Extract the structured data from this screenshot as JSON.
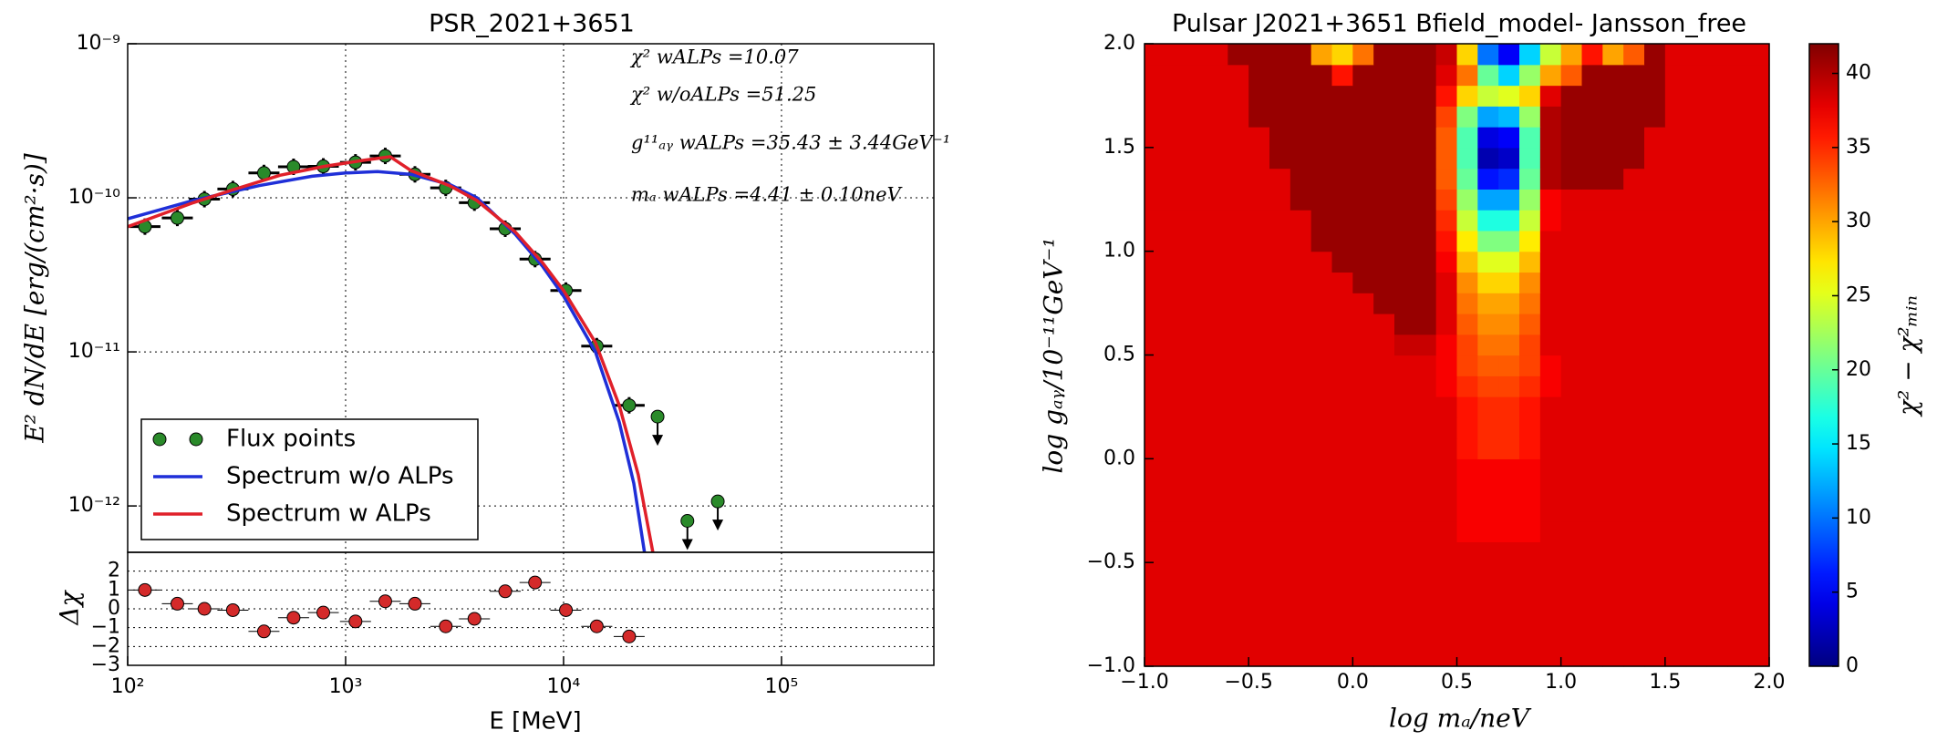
{
  "chart_data": [
    {
      "type": "line",
      "title": "PSR_2021+3651",
      "xlabel": "E [MeV]",
      "ylabel": "E² dN/dE [erg/(cm²·s)]",
      "logx": true,
      "logy": true,
      "grid": true,
      "legend": "lower left",
      "xlim": [
        100,
        500000
      ],
      "ylim": [
        5e-13,
        1e-09
      ],
      "xticks": [
        100,
        1000,
        10000,
        100000
      ],
      "yticks": [
        {
          "value": 1e-09,
          "label": "10⁻⁹"
        },
        {
          "value": 1e-10,
          "label": "10⁻¹⁰"
        },
        {
          "value": 1e-11,
          "label": "10⁻¹¹"
        },
        {
          "value": 1e-12,
          "label": "10⁻¹²"
        }
      ],
      "annotations": [
        "χ² wALPs =10.07",
        "χ² w/oALPs =51.25",
        "g¹¹ₐᵧ wALPs =35.43 ± 3.44GeV⁻¹",
        "mₐ wALPs =4.41 ± 0.10neV"
      ],
      "series": [
        {
          "name": "Flux points",
          "type": "markers",
          "color": "#2a8a2a",
          "x": [
            120,
            169,
            225,
            304,
            422,
            577,
            790,
            1110,
            1520,
            2080,
            2880,
            3900,
            5400,
            7400,
            10250,
            14200,
            20000
          ],
          "values": [
            6.5e-11,
            7.4e-11,
            9.8e-11,
            1.14e-10,
            1.45e-10,
            1.59e-10,
            1.6e-10,
            1.7e-10,
            1.87e-10,
            1.42e-10,
            1.16e-10,
            9.3e-11,
            6.3e-11,
            4e-11,
            2.5e-11,
            1.09e-11,
            4.5e-12
          ]
        },
        {
          "name": "Spectrum w/o ALPs",
          "type": "line",
          "color": "#1f2fd8",
          "x": [
            100,
            200,
            400,
            700,
            1000,
            1400,
            2000,
            3000,
            4000,
            6000,
            8000,
            10000,
            14000,
            18000,
            21000,
            23500
          ],
          "values": [
            7.3e-11,
            9.6e-11,
            1.2e-10,
            1.38e-10,
            1.45e-10,
            1.48e-10,
            1.42e-10,
            1.22e-10,
            1e-10,
            5.8e-11,
            3.6e-11,
            2.3e-11,
            1e-11,
            3.5e-12,
            1.4e-12,
            5e-13
          ]
        },
        {
          "name": "Spectrum w ALPs",
          "type": "line",
          "color": "#e0202a",
          "x": [
            100,
            200,
            300,
            500,
            800,
            1200,
            1600,
            2000,
            3000,
            4000,
            6000,
            8000,
            10000,
            14000,
            18000,
            22000,
            25700
          ],
          "values": [
            6.5e-11,
            9.3e-11,
            1.12e-10,
            1.4e-10,
            1.6e-10,
            1.75e-10,
            1.85e-10,
            1.5e-10,
            1.2e-10,
            9.6e-11,
            6e-11,
            3.8e-11,
            2.5e-11,
            1.15e-11,
            4.5e-12,
            1.6e-12,
            5e-13
          ]
        }
      ],
      "upper_limits": {
        "color": "#2a8a2a",
        "x": [
          27000,
          37000,
          51000
        ],
        "values": [
          3.8e-12,
          8e-13,
          1.07e-12
        ]
      }
    },
    {
      "type": "scatter",
      "ylabel": "Δχ",
      "logx": true,
      "grid": true,
      "color": "#d42a2a",
      "xlim": [
        100,
        500000
      ],
      "ylim": [
        -3,
        3
      ],
      "xticks": [
        {
          "value": 100,
          "label": "10²"
        },
        {
          "value": 1000,
          "label": "10³"
        },
        {
          "value": 10000,
          "label": "10⁴"
        },
        {
          "value": 100000,
          "label": "10⁵"
        }
      ],
      "yticks": [
        {
          "value": -3,
          "label": "−3"
        },
        {
          "value": -2,
          "label": "−2"
        },
        {
          "value": -1,
          "label": "−1"
        },
        0,
        1,
        2
      ],
      "x": [
        120,
        169,
        225,
        304,
        422,
        577,
        790,
        1110,
        1520,
        2080,
        2880,
        3900,
        5400,
        7400,
        10250,
        14200,
        20000
      ],
      "values": [
        1.0,
        0.27,
        0,
        -0.07,
        -1.2,
        -0.47,
        -0.2,
        -0.67,
        0.4,
        0.27,
        -0.93,
        -0.53,
        0.93,
        1.4,
        -0.07,
        -0.93,
        -1.47
      ]
    },
    {
      "type": "heatmap",
      "title": "Pulsar J2021+3651 Bfield_model- Jansson_free",
      "xlabel": "log mₐ/neV",
      "ylabel": "log gₐᵧ/10⁻¹¹GeV⁻¹",
      "colorbar_label": "χ² − χ²ₘᵢₙ",
      "colormap": "jet",
      "xlim": [
        -1,
        2
      ],
      "ylim": [
        -1,
        2
      ],
      "clim": [
        0,
        42
      ],
      "xticks": [
        {
          "value": -1,
          "label": "−1.0"
        },
        {
          "value": -0.5,
          "label": "−0.5"
        },
        {
          "value": 0,
          "label": "0.0"
        },
        {
          "value": 0.5,
          "label": "0.5"
        },
        {
          "value": 1,
          "label": "1.0"
        },
        {
          "value": 1.5,
          "label": "1.5"
        },
        {
          "value": 2,
          "label": "2.0"
        }
      ],
      "yticks": [
        {
          "value": -1,
          "label": "−1.0"
        },
        {
          "value": -0.5,
          "label": "−0.5"
        },
        {
          "value": 0,
          "label": "0.0"
        },
        {
          "value": 0.5,
          "label": "0.5"
        },
        {
          "value": 1,
          "label": "1.0"
        },
        {
          "value": 1.5,
          "label": "1.5"
        },
        {
          "value": 2,
          "label": "2.0"
        }
      ],
      "cticks": [
        0,
        5,
        10,
        15,
        20,
        25,
        30,
        35,
        40
      ],
      "z": [
        [
          38,
          38,
          38,
          38,
          38,
          38,
          38,
          38,
          38,
          38,
          38,
          38,
          38,
          38,
          38,
          38,
          38,
          38,
          38,
          38,
          38,
          38,
          38,
          38,
          38,
          38,
          38,
          38,
          38,
          38
        ],
        [
          38,
          38,
          38,
          38,
          38,
          38,
          38,
          38,
          38,
          38,
          38,
          38,
          38,
          38,
          38,
          38,
          38,
          38,
          38,
          38,
          38,
          38,
          38,
          38,
          38,
          38,
          38,
          38,
          38,
          38
        ],
        [
          38,
          38,
          38,
          38,
          38,
          38,
          38,
          38,
          38,
          38,
          38,
          38,
          38,
          38,
          38,
          38,
          38,
          38,
          38,
          38,
          38,
          38,
          38,
          38,
          38,
          38,
          38,
          38,
          38,
          38
        ],
        [
          38,
          38,
          38,
          38,
          38,
          38,
          38,
          38,
          38,
          38,
          38,
          38,
          38,
          38,
          38,
          38,
          38,
          38,
          38,
          38,
          38,
          38,
          38,
          38,
          38,
          38,
          38,
          38,
          38,
          38
        ],
        [
          38,
          38,
          38,
          38,
          38,
          38,
          38,
          38,
          38,
          38,
          38,
          38,
          38,
          38,
          38,
          38,
          38,
          38,
          38,
          38,
          38,
          38,
          38,
          38,
          38,
          38,
          38,
          38,
          38,
          38
        ],
        [
          38,
          38,
          38,
          38,
          38,
          38,
          38,
          38,
          38,
          38,
          38,
          38,
          38,
          38,
          38,
          38,
          38,
          38,
          38,
          38,
          38,
          38,
          38,
          38,
          38,
          38,
          38,
          38,
          38,
          38
        ],
        [
          38,
          38,
          38,
          38,
          38,
          38,
          38,
          38,
          38,
          38,
          38,
          38,
          38,
          38,
          38,
          37,
          37,
          37,
          37,
          38,
          38,
          38,
          38,
          38,
          38,
          38,
          38,
          38,
          38,
          38
        ],
        [
          38,
          38,
          38,
          38,
          38,
          38,
          38,
          38,
          38,
          38,
          38,
          38,
          38,
          38,
          38,
          37,
          37,
          37,
          37,
          38,
          38,
          38,
          38,
          38,
          38,
          38,
          38,
          38,
          38,
          38
        ],
        [
          38,
          38,
          38,
          38,
          38,
          38,
          38,
          38,
          38,
          38,
          38,
          38,
          38,
          38,
          38,
          37,
          37,
          37,
          37,
          38,
          38,
          38,
          38,
          38,
          38,
          38,
          38,
          38,
          38,
          38
        ],
        [
          38,
          38,
          38,
          38,
          38,
          38,
          38,
          38,
          38,
          38,
          38,
          38,
          38,
          38,
          38,
          37,
          37,
          37,
          37,
          38,
          38,
          38,
          38,
          38,
          38,
          38,
          38,
          38,
          38,
          38
        ],
        [
          38,
          38,
          38,
          38,
          38,
          38,
          38,
          38,
          38,
          38,
          38,
          38,
          38,
          38,
          38,
          36,
          35,
          35,
          36,
          38,
          38,
          38,
          38,
          38,
          38,
          38,
          38,
          38,
          38,
          38
        ],
        [
          38,
          38,
          38,
          38,
          38,
          38,
          38,
          38,
          38,
          38,
          38,
          38,
          38,
          38,
          38,
          36,
          35,
          35,
          36,
          38,
          38,
          38,
          38,
          38,
          38,
          38,
          38,
          38,
          38,
          38
        ],
        [
          38,
          38,
          38,
          38,
          38,
          38,
          38,
          38,
          38,
          38,
          38,
          38,
          38,
          38,
          38,
          36,
          35,
          35,
          36,
          38,
          38,
          38,
          38,
          38,
          38,
          38,
          38,
          38,
          38,
          38
        ],
        [
          38,
          38,
          38,
          38,
          38,
          38,
          38,
          38,
          38,
          38,
          38,
          38,
          38,
          38,
          37,
          35,
          34,
          34,
          35,
          37,
          38,
          38,
          38,
          38,
          38,
          38,
          38,
          38,
          38,
          38
        ],
        [
          38,
          38,
          38,
          38,
          38,
          38,
          38,
          38,
          38,
          38,
          38,
          38,
          38,
          38,
          37,
          34,
          33,
          33,
          34,
          37,
          38,
          38,
          38,
          38,
          38,
          38,
          38,
          38,
          38,
          38
        ],
        [
          38,
          38,
          38,
          38,
          38,
          38,
          38,
          38,
          38,
          38,
          38,
          38,
          39,
          39,
          37,
          34,
          32,
          32,
          34,
          38,
          38,
          38,
          38,
          38,
          38,
          38,
          38,
          38,
          38,
          38
        ],
        [
          38,
          38,
          38,
          38,
          38,
          38,
          38,
          38,
          38,
          38,
          38,
          38,
          41,
          41,
          38,
          33,
          31,
          31,
          33,
          38,
          38,
          38,
          38,
          38,
          38,
          38,
          38,
          38,
          38,
          38
        ],
        [
          38,
          38,
          38,
          38,
          38,
          38,
          38,
          38,
          38,
          38,
          38,
          41,
          41,
          41,
          38,
          32,
          30,
          30,
          32,
          38,
          38,
          38,
          38,
          38,
          38,
          38,
          38,
          38,
          38,
          38
        ],
        [
          38,
          38,
          38,
          38,
          38,
          38,
          38,
          38,
          38,
          38,
          41,
          41,
          41,
          41,
          38,
          31,
          28,
          28,
          31,
          38,
          38,
          38,
          38,
          38,
          38,
          38,
          38,
          38,
          38,
          38
        ],
        [
          38,
          38,
          38,
          38,
          38,
          38,
          38,
          38,
          38,
          41,
          41,
          41,
          41,
          41,
          37,
          29,
          25,
          25,
          29,
          38,
          38,
          38,
          38,
          38,
          38,
          38,
          38,
          38,
          38,
          38
        ],
        [
          38,
          38,
          38,
          38,
          38,
          38,
          38,
          38,
          41,
          41,
          41,
          41,
          41,
          41,
          36,
          27,
          21,
          21,
          27,
          38,
          38,
          38,
          38,
          38,
          38,
          38,
          38,
          38,
          38,
          38
        ],
        [
          38,
          38,
          38,
          38,
          38,
          38,
          38,
          38,
          41,
          41,
          41,
          41,
          41,
          41,
          35,
          24,
          17,
          17,
          24,
          37,
          38,
          38,
          38,
          38,
          38,
          38,
          38,
          38,
          38,
          38
        ],
        [
          38,
          38,
          38,
          38,
          38,
          38,
          38,
          41,
          41,
          41,
          41,
          41,
          41,
          41,
          34,
          22,
          12,
          12,
          22,
          37,
          38,
          38,
          38,
          38,
          38,
          38,
          38,
          38,
          38,
          38
        ],
        [
          38,
          38,
          38,
          38,
          38,
          38,
          38,
          41,
          41,
          41,
          41,
          41,
          41,
          41,
          33,
          20,
          6,
          7,
          20,
          40,
          41,
          41,
          41,
          38,
          38,
          38,
          38,
          38,
          38,
          38
        ],
        [
          38,
          38,
          38,
          38,
          38,
          38,
          41,
          41,
          41,
          41,
          41,
          41,
          41,
          41,
          33,
          19,
          2,
          3,
          19,
          40,
          41,
          41,
          41,
          41,
          38,
          38,
          38,
          38,
          38,
          38
        ],
        [
          38,
          38,
          38,
          38,
          38,
          38,
          41,
          41,
          41,
          41,
          41,
          41,
          41,
          41,
          33,
          19,
          4,
          5,
          19,
          40,
          41,
          41,
          41,
          41,
          38,
          38,
          38,
          38,
          38,
          38
        ],
        [
          38,
          38,
          38,
          38,
          38,
          41,
          41,
          41,
          41,
          41,
          41,
          41,
          41,
          41,
          34,
          21,
          12,
          13,
          22,
          40,
          41,
          41,
          41,
          41,
          41,
          38,
          38,
          38,
          38,
          38
        ],
        [
          38,
          38,
          38,
          38,
          38,
          41,
          41,
          41,
          41,
          41,
          41,
          41,
          41,
          41,
          36,
          28,
          24,
          25,
          28,
          38,
          41,
          41,
          41,
          41,
          41,
          38,
          38,
          38,
          38,
          38
        ],
        [
          38,
          38,
          38,
          38,
          38,
          41,
          41,
          41,
          41,
          36,
          41,
          41,
          41,
          41,
          38,
          32,
          20,
          14,
          22,
          30,
          33,
          41,
          41,
          41,
          41,
          38,
          38,
          38,
          38,
          38
        ],
        [
          38,
          38,
          38,
          38,
          41,
          41,
          41,
          41,
          30,
          28,
          32,
          41,
          41,
          41,
          39,
          28,
          10,
          5,
          14,
          24,
          30,
          36,
          30,
          33,
          41,
          38,
          38,
          38,
          38,
          38
        ]
      ]
    }
  ]
}
